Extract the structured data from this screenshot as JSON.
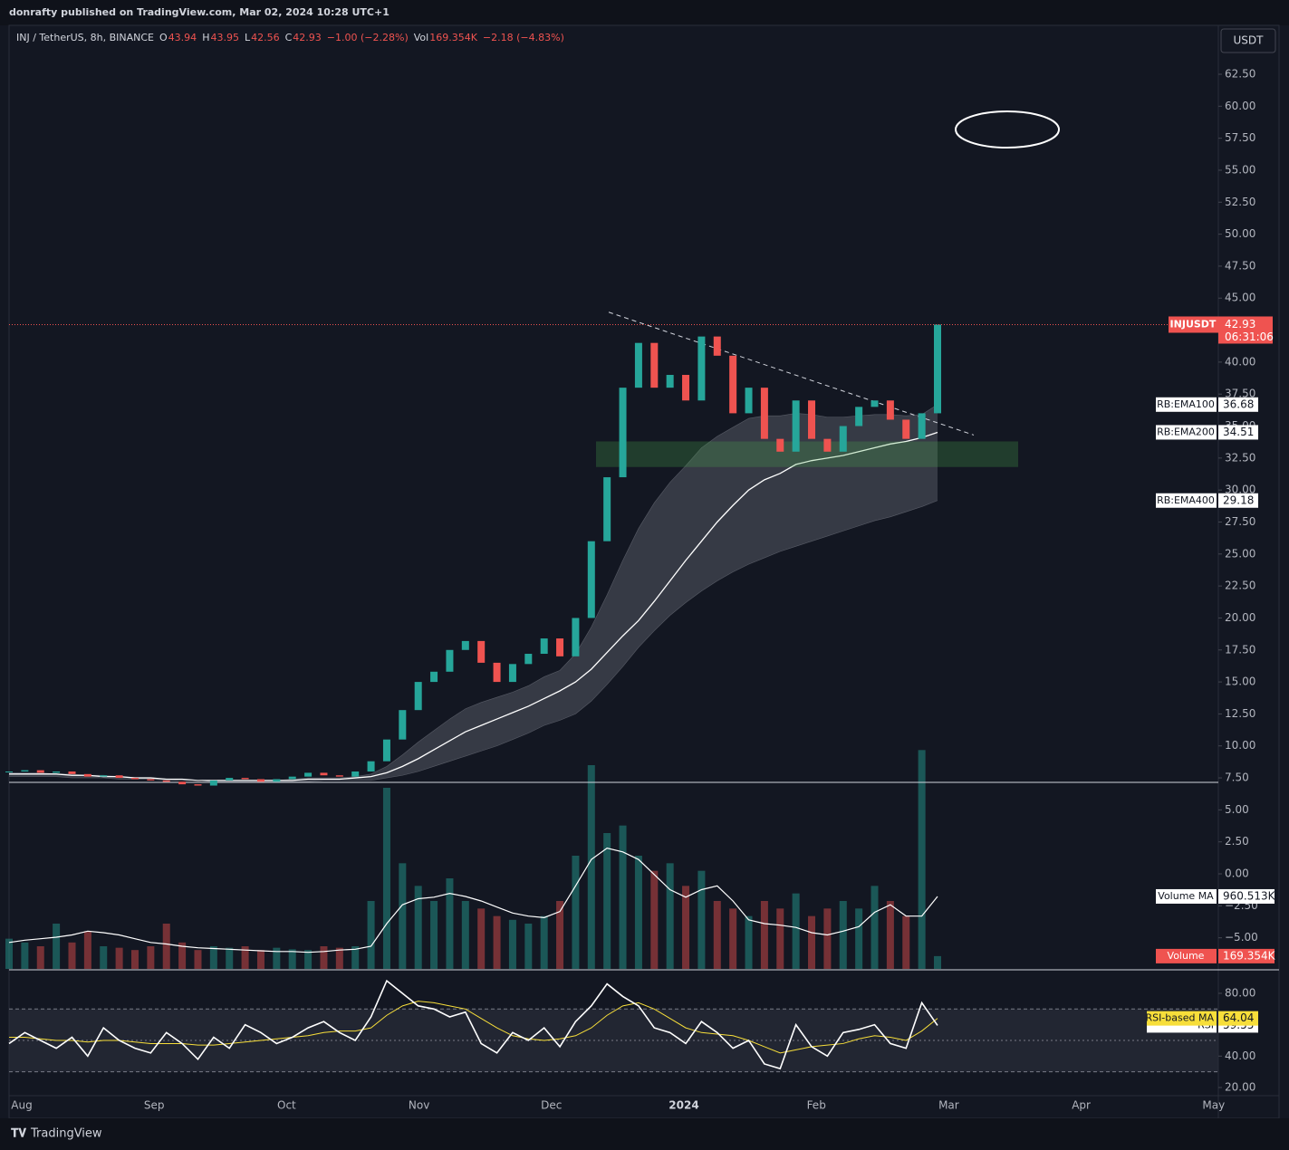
{
  "header": {
    "published": "donrafty published on TradingView.com, Mar 02, 2024 10:28 UTC+1"
  },
  "legend": [
    {
      "text": "INJ / TetherUS, 8h, BINANCE",
      "color": "#d1d4dc"
    },
    {
      "text": "O",
      "color": "#d1d4dc"
    },
    {
      "text": "43.94",
      "color": "#ef5350"
    },
    {
      "text": "H",
      "color": "#d1d4dc"
    },
    {
      "text": "43.95",
      "color": "#ef5350"
    },
    {
      "text": "L",
      "color": "#d1d4dc"
    },
    {
      "text": "42.56",
      "color": "#ef5350"
    },
    {
      "text": "C",
      "color": "#d1d4dc"
    },
    {
      "text": "42.93",
      "color": "#ef5350"
    },
    {
      "text": "−1.00 (−2.28%)",
      "color": "#ef5350"
    },
    {
      "text": "Vol",
      "color": "#d1d4dc"
    },
    {
      "text": "169.354K",
      "color": "#ef5350"
    },
    {
      "text": "−2.18 (−4.83%)",
      "color": "#ef5350"
    }
  ],
  "currency_button": "USDT",
  "footer": "TradingView",
  "chart_data": {
    "type": "candlestick",
    "month_labels": [
      "Aug",
      "Sep",
      "Oct",
      "Nov",
      "Dec",
      "2024",
      "Feb",
      "Mar",
      "Apr",
      "May"
    ],
    "ylim": [
      -7.43,
      66.18
    ],
    "yticks": [
      {
        "value": 62.5,
        "label": "62.50"
      },
      {
        "value": 60,
        "label": "60.00"
      },
      {
        "value": 57.5,
        "label": "57.50"
      },
      {
        "value": 55,
        "label": "55.00"
      },
      {
        "value": 52.5,
        "label": "52.50"
      },
      {
        "value": 50,
        "label": "50.00"
      },
      {
        "value": 47.5,
        "label": "47.50"
      },
      {
        "value": 45,
        "label": "45.00"
      },
      {
        "value": 42.5,
        "label": "42.50"
      },
      {
        "value": 40,
        "label": "40.00"
      },
      {
        "value": 37.5,
        "label": "37.50"
      },
      {
        "value": 35,
        "label": "35.00"
      },
      {
        "value": 32.5,
        "label": "32.50"
      },
      {
        "value": 30,
        "label": "30.00"
      },
      {
        "value": 27.5,
        "label": "27.50"
      },
      {
        "value": 25,
        "label": "25.00"
      },
      {
        "value": 22.5,
        "label": "22.50"
      },
      {
        "value": 20,
        "label": "20.00"
      },
      {
        "value": 17.5,
        "label": "17.50"
      },
      {
        "value": 15,
        "label": "15.00"
      },
      {
        "value": 12.5,
        "label": "12.50"
      },
      {
        "value": 10,
        "label": "10.00"
      },
      {
        "value": 7.5,
        "label": "7.50"
      },
      {
        "value": 5,
        "label": "5.00"
      },
      {
        "value": 2.5,
        "label": "2.50"
      },
      {
        "value": 0,
        "label": "0.00"
      },
      {
        "value": -2.5,
        "label": "−2.50"
      },
      {
        "value": -5,
        "label": "−5.00"
      }
    ],
    "series": [
      {
        "name": "INJUSDT",
        "up_color": "#26a69a",
        "down_color": "#ef5350",
        "values": [
          8.0,
          8.1,
          7.9,
          8.0,
          7.8,
          7.6,
          7.7,
          7.5,
          7.4,
          7.3,
          7.2,
          7.0,
          6.9,
          7.3,
          7.5,
          7.4,
          7.2,
          7.4,
          7.6,
          7.9,
          7.7,
          7.6,
          8.0,
          8.8,
          10.5,
          12.8,
          15.0,
          15.8,
          17.5,
          18.2,
          16.5,
          15.0,
          16.4,
          17.2,
          18.4,
          17.0,
          20,
          26,
          31,
          38,
          41.5,
          38,
          39,
          37,
          42,
          40.5,
          36,
          38,
          34,
          33,
          37,
          34,
          33,
          35,
          36.5,
          37,
          35.5,
          34,
          36,
          42.93
        ]
      }
    ],
    "last_price": 42.93,
    "countdown": "06:31:06",
    "emas": [
      {
        "name": "RB:EMA100",
        "value": 36.68,
        "color": "#787b86",
        "values": [
          7.9,
          7.9,
          7.9,
          7.8,
          7.8,
          7.7,
          7.7,
          7.6,
          7.5,
          7.5,
          7.4,
          7.3,
          7.3,
          7.3,
          7.3,
          7.3,
          7.3,
          7.3,
          7.4,
          7.5,
          7.5,
          7.5,
          7.6,
          7.8,
          8.4,
          9.3,
          10.3,
          11.2,
          12.1,
          12.9,
          13.4,
          13.8,
          14.2,
          14.7,
          15.4,
          15.9,
          17.2,
          19.3,
          21.8,
          24.5,
          27.0,
          29.0,
          30.6,
          31.9,
          33.3,
          34.2,
          34.9,
          35.6,
          35.8,
          35.8,
          36.0,
          35.9,
          35.7,
          35.7,
          35.8,
          35.9,
          35.9,
          35.8,
          35.9,
          36.68
        ]
      },
      {
        "name": "RB:EMA200",
        "value": 34.51,
        "color": "#ffffff",
        "values": [
          7.8,
          7.8,
          7.8,
          7.8,
          7.7,
          7.7,
          7.6,
          7.6,
          7.5,
          7.5,
          7.4,
          7.4,
          7.3,
          7.3,
          7.3,
          7.3,
          7.3,
          7.3,
          7.3,
          7.4,
          7.4,
          7.4,
          7.5,
          7.6,
          7.9,
          8.4,
          9.0,
          9.7,
          10.4,
          11.1,
          11.6,
          12.1,
          12.6,
          13.1,
          13.7,
          14.3,
          15.0,
          16.0,
          17.3,
          18.6,
          19.8,
          21.3,
          22.9,
          24.5,
          26.0,
          27.5,
          28.8,
          30.0,
          30.8,
          31.3,
          32.0,
          32.3,
          32.5,
          32.7,
          33.0,
          33.3,
          33.6,
          33.8,
          34.1,
          34.51
        ]
      },
      {
        "name": "RB:EMA400",
        "value": 29.18,
        "color": "#787b86",
        "values": [
          7.6,
          7.6,
          7.6,
          7.6,
          7.5,
          7.5,
          7.5,
          7.4,
          7.4,
          7.4,
          7.3,
          7.3,
          7.3,
          7.2,
          7.2,
          7.2,
          7.2,
          7.2,
          7.2,
          7.2,
          7.3,
          7.3,
          7.3,
          7.3,
          7.5,
          7.7,
          8.0,
          8.4,
          8.8,
          9.2,
          9.6,
          10.0,
          10.5,
          11.0,
          11.6,
          12.0,
          12.5,
          13.5,
          14.8,
          16.2,
          17.7,
          19.0,
          20.2,
          21.2,
          22.1,
          22.9,
          23.6,
          24.2,
          24.7,
          25.2,
          25.6,
          26.0,
          26.4,
          26.8,
          27.2,
          27.6,
          27.9,
          28.3,
          28.7,
          29.18
        ]
      }
    ],
    "support_zone": {
      "low": 31.8,
      "high": 33.8,
      "color": "#4caf50"
    },
    "trendline": [
      43.9,
      34.3
    ],
    "horizontal_line": 7.15,
    "volume": {
      "name": "Volume",
      "ylim": [
        0,
        3000
      ],
      "last_label": "169.354K",
      "values": [
        400,
        350,
        300,
        600,
        350,
        500,
        300,
        280,
        250,
        300,
        600,
        350,
        250,
        300,
        280,
        300,
        250,
        280,
        260,
        250,
        300,
        280,
        300,
        900,
        2400,
        1400,
        1100,
        900,
        1200,
        900,
        800,
        700,
        650,
        600,
        700,
        900,
        1500,
        2700,
        1800,
        1900,
        1500,
        1300,
        1400,
        1100,
        1300,
        900,
        800,
        700,
        900,
        800,
        1000,
        700,
        800,
        900,
        800,
        1100,
        900,
        700,
        2900,
        169.354
      ],
      "ma": {
        "name": "Volume MA",
        "last_label": "960.513K",
        "color": "#ffffff",
        "values": [
          350,
          380,
          400,
          420,
          450,
          500,
          480,
          450,
          400,
          350,
          330,
          300,
          280,
          270,
          260,
          250,
          240,
          230,
          230,
          220,
          230,
          250,
          260,
          300,
          600,
          850,
          930,
          950,
          1000,
          960,
          900,
          820,
          740,
          700,
          680,
          760,
          1100,
          1450,
          1600,
          1550,
          1450,
          1250,
          1050,
          950,
          1050,
          1100,
          900,
          650,
          600,
          580,
          550,
          480,
          450,
          500,
          560,
          750,
          850,
          700,
          700,
          960.513
        ]
      }
    },
    "rsi": {
      "ylim": [
        14.8,
        94.4
      ],
      "yticks": [
        {
          "value": 80,
          "label": "80.00"
        },
        {
          "value": 60,
          "label": "60.00"
        },
        {
          "value": 40,
          "label": "40.00"
        },
        {
          "value": 20,
          "label": "20.00"
        }
      ],
      "levels": [
        70,
        50,
        30
      ],
      "series": [
        {
          "name": "RSI",
          "color": "#ffffff",
          "value": 59.55,
          "values": [
            48,
            55,
            50,
            45,
            52,
            40,
            58,
            50,
            45,
            42,
            55,
            48,
            38,
            52,
            45,
            60,
            55,
            48,
            52,
            58,
            62,
            55,
            50,
            65,
            88,
            80,
            72,
            70,
            65,
            68,
            48,
            42,
            55,
            50,
            58,
            46,
            62,
            72,
            86,
            78,
            72,
            58,
            55,
            48,
            62,
            55,
            45,
            50,
            35,
            32,
            60,
            46,
            40,
            55,
            57,
            60,
            48,
            45,
            74,
            59.55
          ]
        },
        {
          "name": "RSI-based MA",
          "color": "#f7de3a",
          "value": 64.04,
          "values": [
            52,
            52,
            51,
            50,
            50,
            49,
            50,
            50,
            49,
            48,
            48,
            48,
            47,
            47,
            48,
            49,
            50,
            51,
            52,
            53,
            55,
            56,
            56,
            58,
            66,
            72,
            75,
            74,
            72,
            70,
            64,
            58,
            53,
            51,
            50,
            51,
            53,
            58,
            66,
            72,
            74,
            70,
            64,
            58,
            55,
            54,
            53,
            50,
            46,
            42,
            44,
            46,
            47,
            48,
            51,
            53,
            52,
            50,
            56,
            64.04
          ]
        }
      ]
    }
  }
}
